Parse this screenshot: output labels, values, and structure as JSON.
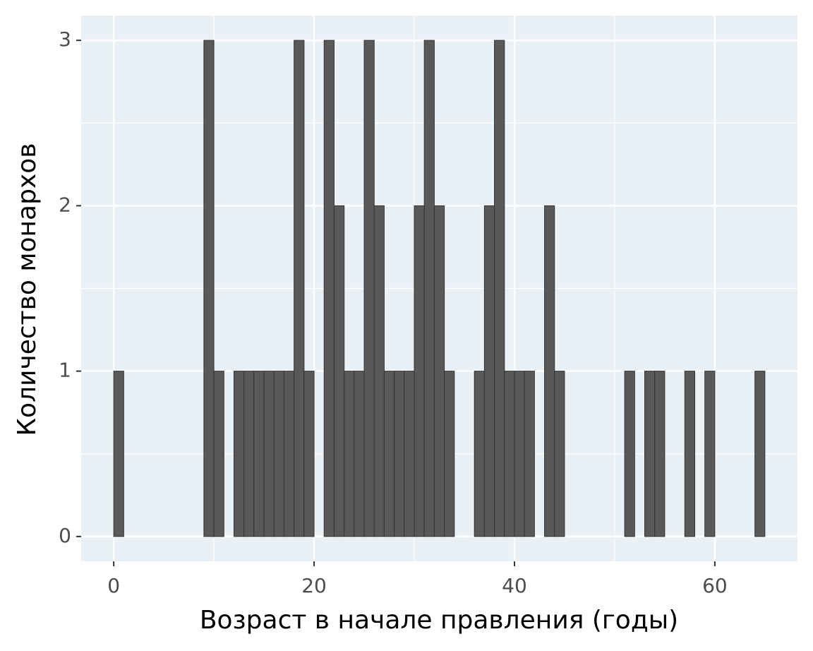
{
  "chart_data": {
    "type": "histogram",
    "x_label": "Возраст в начале правления (годы)",
    "y_label": "Количество монархов",
    "bins": [
      0,
      1,
      2,
      3,
      4,
      5,
      6,
      7,
      8,
      9,
      10,
      11,
      12,
      13,
      14,
      15,
      16,
      17,
      18,
      19,
      20,
      21,
      22,
      23,
      24,
      25,
      26,
      27,
      28,
      29,
      30,
      31,
      32,
      33,
      34,
      35,
      36,
      37,
      38,
      39,
      40,
      41,
      42,
      43,
      44,
      45,
      46,
      47,
      48,
      49,
      50,
      51,
      52,
      53,
      54,
      55,
      56,
      57,
      58,
      59,
      60,
      61,
      62,
      63,
      64,
      65
    ],
    "values": [
      1,
      0,
      0,
      0,
      0,
      0,
      0,
      0,
      0,
      3,
      1,
      0,
      1,
      1,
      1,
      1,
      1,
      1,
      3,
      1,
      0,
      3,
      2,
      1,
      1,
      3,
      2,
      1,
      1,
      1,
      2,
      3,
      2,
      1,
      0,
      0,
      1,
      2,
      3,
      1,
      1,
      1,
      0,
      2,
      1,
      0,
      0,
      0,
      0,
      0,
      0,
      1,
      0,
      1,
      1,
      0,
      0,
      1,
      0,
      1,
      0,
      0,
      0,
      0,
      1
    ],
    "color": "#595959",
    "xlim": [
      -3.25,
      68.25
    ],
    "xticks": [
      0,
      20,
      40,
      60
    ],
    "ylim": [
      -0.15,
      3.15
    ],
    "yticks": [
      0,
      1,
      2,
      3
    ],
    "grid": true,
    "minor_grid": true
  }
}
